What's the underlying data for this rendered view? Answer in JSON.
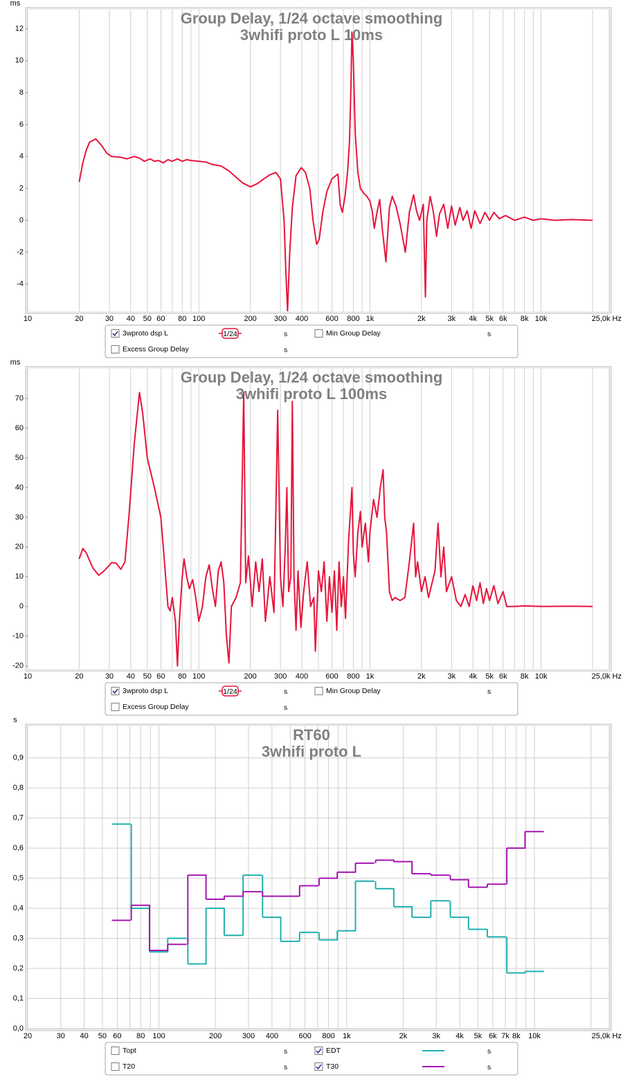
{
  "chart_data": [
    {
      "type": "line",
      "y_unit": "ms",
      "title": "Group Delay, 1/24 octave smoothing",
      "subtitle": "3whifi proto L 10ms",
      "xscale": "log",
      "xlim": [
        10,
        25000
      ],
      "xticks": [
        10,
        20,
        30,
        40,
        50,
        60,
        80,
        100,
        200,
        300,
        400,
        600,
        800,
        {
          "value": 1000,
          "label": "1k"
        },
        {
          "value": 2000,
          "label": "2k"
        },
        {
          "value": 3000,
          "label": "3k"
        },
        {
          "value": 4000,
          "label": "4k"
        },
        {
          "value": 5000,
          "label": "5k"
        },
        {
          "value": 6000,
          "label": "6k"
        },
        {
          "value": 8000,
          "label": "8k"
        },
        {
          "value": 10000,
          "label": "10k"
        },
        {
          "value": 25000,
          "label": "25,0k Hz"
        }
      ],
      "x_minor_grid": [
        70,
        90,
        500,
        700,
        900,
        7000,
        9000,
        20000
      ],
      "ylim": [
        -5.7,
        13.2
      ],
      "yticks": [
        -4,
        -2,
        0,
        2,
        4,
        6,
        8,
        10,
        12
      ],
      "xgrid": true,
      "ygrid": false,
      "x": [
        20,
        21,
        22,
        23,
        25,
        27,
        29,
        31,
        35,
        38,
        42,
        45,
        48,
        52,
        55,
        58,
        62,
        66,
        70,
        75,
        80,
        85,
        90,
        100,
        110,
        120,
        135,
        150,
        165,
        180,
        200,
        220,
        240,
        260,
        282,
        300,
        315,
        322,
        330,
        340,
        352,
        370,
        397,
        420,
        445,
        465,
        488,
        505,
        530,
        560,
        600,
        650,
        670,
        690,
        715,
        740,
        760,
        775,
        785,
        800,
        820,
        850,
        880,
        920,
        960,
        1000,
        1030,
        1060,
        1100,
        1140,
        1180,
        1240,
        1300,
        1350,
        1420,
        1500,
        1610,
        1700,
        1800,
        1870,
        1950,
        2050,
        2110,
        2150,
        2250,
        2350,
        2450,
        2550,
        2700,
        2850,
        3000,
        3150,
        3350,
        3500,
        3700,
        3900,
        4100,
        4400,
        4700,
        5000,
        5300,
        5700,
        6200,
        7000,
        8000,
        9000,
        10000,
        12000,
        15000,
        20000
      ],
      "series": [
        {
          "name": "3wproto dsp L",
          "color": "#e6143c",
          "checked": true,
          "smoothing": "1/24",
          "unit": "s",
          "values": [
            2.4,
            3.6,
            4.4,
            4.9,
            5.1,
            4.7,
            4.2,
            4.0,
            3.95,
            3.85,
            4.0,
            3.9,
            3.7,
            3.85,
            3.7,
            3.75,
            3.6,
            3.8,
            3.7,
            3.85,
            3.7,
            3.8,
            3.75,
            3.7,
            3.65,
            3.5,
            3.4,
            3.1,
            2.7,
            2.35,
            2.1,
            2.3,
            2.6,
            2.85,
            3.0,
            2.6,
            0.0,
            -3.0,
            -5.7,
            -2.0,
            0.8,
            2.8,
            3.3,
            3.0,
            2.0,
            0.0,
            -1.5,
            -1.2,
            0.5,
            1.8,
            2.6,
            2.9,
            1.0,
            0.5,
            1.5,
            3.0,
            5.0,
            8.5,
            11.8,
            10.0,
            5.5,
            3.0,
            2.0,
            1.7,
            1.5,
            1.2,
            0.6,
            -0.5,
            0.5,
            1.3,
            -0.5,
            -2.6,
            0.8,
            1.5,
            0.9,
            -0.2,
            -2.0,
            0.5,
            1.6,
            0.6,
            0.0,
            1.0,
            -4.8,
            0.0,
            1.5,
            0.5,
            -1.0,
            0.4,
            1.0,
            -0.5,
            0.9,
            -0.3,
            0.8,
            0.0,
            0.6,
            -0.5,
            0.6,
            -0.2,
            0.5,
            0.0,
            0.5,
            0.1,
            0.3,
            0.0,
            0.2,
            0.0,
            0.1,
            0.0,
            0.05,
            0.0
          ]
        }
      ],
      "extra_legend": [
        {
          "name": "Min Group Delay",
          "checked": false,
          "unit": "s",
          "color": "#808080"
        },
        {
          "name": "Excess Group Delay",
          "checked": false,
          "unit": "s",
          "color": "#000000"
        }
      ]
    },
    {
      "type": "line",
      "y_unit": "ms",
      "title": "Group Delay, 1/24 octave smoothing",
      "subtitle": "3whifi proto L 100ms",
      "xscale": "log",
      "xlim": [
        10,
        25000
      ],
      "xticks": [
        10,
        20,
        30,
        40,
        50,
        60,
        80,
        100,
        200,
        300,
        400,
        600,
        800,
        {
          "value": 1000,
          "label": "1k"
        },
        {
          "value": 2000,
          "label": "2k"
        },
        {
          "value": 3000,
          "label": "3k"
        },
        {
          "value": 4000,
          "label": "4k"
        },
        {
          "value": 5000,
          "label": "5k"
        },
        {
          "value": 6000,
          "label": "6k"
        },
        {
          "value": 8000,
          "label": "8k"
        },
        {
          "value": 10000,
          "label": "10k"
        },
        {
          "value": 25000,
          "label": "25,0k Hz"
        }
      ],
      "x_minor_grid": [
        70,
        90,
        500,
        700,
        900,
        7000,
        9000,
        20000
      ],
      "ylim": [
        -21,
        80
      ],
      "yticks": [
        -20,
        -10,
        0,
        10,
        20,
        30,
        40,
        50,
        60,
        70
      ],
      "xgrid": true,
      "ygrid": false,
      "x": [
        20,
        21,
        22,
        24,
        26,
        28,
        31,
        33,
        35,
        37,
        39,
        42,
        45,
        47,
        50,
        55,
        60,
        63,
        66,
        68,
        70,
        73,
        75,
        77,
        80,
        82,
        85,
        88,
        92,
        96,
        100,
        105,
        110,
        115,
        120,
        125,
        130,
        135,
        140,
        145,
        150,
        155,
        165,
        175,
        183,
        188,
        195,
        205,
        215,
        225,
        235,
        245,
        260,
        275,
        289,
        300,
        310,
        320,
        327,
        335,
        345,
        352,
        360,
        370,
        380,
        395,
        410,
        430,
        450,
        470,
        480,
        500,
        520,
        540,
        560,
        580,
        600,
        620,
        640,
        660,
        680,
        700,
        720,
        750,
        785,
        800,
        820,
        850,
        880,
        900,
        940,
        980,
        1000,
        1050,
        1100,
        1150,
        1194,
        1220,
        1250,
        1300,
        1350,
        1400,
        1500,
        1600,
        1700,
        1800,
        1850,
        1900,
        2000,
        2100,
        2200,
        2400,
        2500,
        2600,
        2700,
        2800,
        3000,
        3200,
        3400,
        3600,
        3800,
        4000,
        4200,
        4400,
        4600,
        4800,
        5000,
        5300,
        5600,
        6000,
        6300,
        7000,
        8000,
        10000,
        15000,
        20000
      ],
      "series": [
        {
          "name": "3wproto dsp L",
          "color": "#e6143c",
          "checked": true,
          "smoothing": "1/24",
          "unit": "s",
          "values": [
            16,
            19.5,
            18,
            13,
            10.5,
            12,
            14.8,
            14.5,
            12.5,
            15,
            30,
            55,
            72,
            65,
            50,
            40,
            30,
            15,
            0,
            -1.5,
            3,
            -5,
            -20,
            -5,
            10,
            16,
            10,
            6,
            9,
            3,
            -5,
            0,
            10,
            14,
            6,
            0,
            12,
            15,
            8,
            -10,
            -19,
            0,
            3,
            8,
            72,
            8,
            17,
            0,
            15,
            5,
            16,
            -5,
            10,
            -2,
            66,
            10,
            0,
            20,
            40,
            5,
            10,
            69,
            10,
            -8,
            12,
            -7,
            5,
            15,
            0,
            3,
            -15,
            12,
            5,
            15,
            -5,
            10,
            -2,
            12,
            -8,
            15,
            0,
            10,
            -4,
            22,
            40,
            18,
            10,
            25,
            32,
            20,
            28,
            15,
            25,
            36,
            30,
            40,
            46,
            30,
            25,
            5,
            2,
            3,
            2,
            3,
            15,
            28,
            10,
            15,
            5,
            10,
            3,
            12,
            28,
            10,
            20,
            5,
            10,
            2,
            0,
            4,
            0,
            7,
            2,
            8,
            1,
            6,
            2,
            7,
            1,
            5,
            0,
            0,
            0.2,
            0,
            0.1,
            0
          ]
        }
      ],
      "extra_legend": [
        {
          "name": "Min Group Delay",
          "checked": false,
          "unit": "s",
          "color": "#808080"
        },
        {
          "name": "Excess Group Delay",
          "checked": false,
          "unit": "s",
          "color": "#000000"
        }
      ]
    },
    {
      "type": "step",
      "y_unit": "s",
      "title": "RT60",
      "subtitle": "3whifi proto L",
      "xscale": "log",
      "xlim": [
        20,
        25000
      ],
      "xticks": [
        20,
        30,
        40,
        50,
        60,
        80,
        100,
        200,
        300,
        400,
        600,
        800,
        {
          "value": 1000,
          "label": "1k"
        },
        {
          "value": 2000,
          "label": "2k"
        },
        {
          "value": 3000,
          "label": "3k"
        },
        {
          "value": 4000,
          "label": "4k"
        },
        {
          "value": 5000,
          "label": "5k"
        },
        {
          "value": 6000,
          "label": "6k"
        },
        {
          "value": 7000,
          "label": "7k"
        },
        {
          "value": 8000,
          "label": "8k"
        },
        {
          "value": 10000,
          "label": "10k"
        },
        {
          "value": 25000,
          "label": "25,0k Hz"
        }
      ],
      "x_minor_grid": [
        70,
        90,
        500,
        700,
        900,
        9000,
        20000
      ],
      "ylim": [
        0,
        1.005
      ],
      "yticks": [
        {
          "value": 0,
          "label": "0,0"
        },
        {
          "value": 0.1,
          "label": "0,1"
        },
        {
          "value": 0.2,
          "label": "0,2"
        },
        {
          "value": 0.3,
          "label": "0,3"
        },
        {
          "value": 0.4,
          "label": "0,4"
        },
        {
          "value": 0.5,
          "label": "0,5"
        },
        {
          "value": 0.6,
          "label": "0,6"
        },
        {
          "value": 0.7,
          "label": "0,7"
        },
        {
          "value": 0.8,
          "label": "0,8"
        },
        {
          "value": 0.9,
          "label": "0,9"
        }
      ],
      "xgrid": true,
      "ygrid": true,
      "x": [
        63,
        80,
        100,
        125,
        160,
        200,
        250,
        315,
        400,
        500,
        630,
        800,
        1000,
        1250,
        1600,
        2000,
        2500,
        3150,
        4000,
        5000,
        6300,
        8000,
        10000
      ],
      "series": [
        {
          "name": "EDT",
          "color": "#1eb0ae",
          "checked": true,
          "unit": "s",
          "values": [
            0.68,
            0.4,
            0.255,
            0.3,
            0.215,
            0.4,
            0.31,
            0.51,
            0.37,
            0.29,
            0.32,
            0.295,
            0.325,
            0.49,
            0.465,
            0.405,
            0.37,
            0.425,
            0.37,
            0.33,
            0.305,
            0.185,
            0.19
          ]
        },
        {
          "name": "T30",
          "color": "#a414b0",
          "checked": true,
          "unit": "s",
          "values": [
            0.36,
            0.41,
            0.26,
            0.28,
            0.51,
            0.43,
            0.44,
            0.455,
            0.44,
            0.44,
            0.475,
            0.5,
            0.52,
            0.55,
            0.56,
            0.555,
            0.515,
            0.51,
            0.495,
            0.47,
            0.48,
            0.6,
            0.655
          ]
        }
      ],
      "extra_legend": [
        {
          "name": "Topt",
          "checked": false,
          "unit": "s",
          "color": "#008000"
        },
        {
          "name": "T20",
          "checked": false,
          "unit": "s",
          "color": "#000000"
        }
      ]
    }
  ]
}
